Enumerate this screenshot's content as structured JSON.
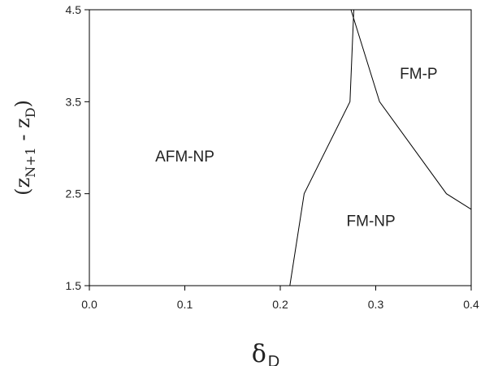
{
  "chart_data": {
    "type": "line",
    "title": "",
    "xlabel": {
      "main": "δ",
      "sub": "D"
    },
    "ylabel": {
      "open": "(z",
      "sub1": "N+1",
      "mid": " - z",
      "sub2": "D",
      "close": ")"
    },
    "xlim": [
      0.0,
      0.4
    ],
    "ylim": [
      1.5,
      4.5
    ],
    "x_ticks": [
      0.0,
      0.1,
      0.2,
      0.3,
      0.4
    ],
    "x_tick_labels": [
      "0.0",
      "0.1",
      "0.2",
      "0.3",
      "0.4"
    ],
    "y_ticks": [
      1.5,
      2.5,
      3.5,
      4.5
    ],
    "y_tick_labels": [
      "1.5",
      "2.5",
      "3.5",
      "4.5"
    ],
    "grid": false,
    "series": [
      {
        "x": [
          0.21,
          0.225,
          0.273,
          0.277
        ],
        "y": [
          1.5,
          2.5,
          3.5,
          4.5
        ]
      },
      {
        "x": [
          0.274,
          0.304,
          0.374,
          0.4
        ],
        "y": [
          4.5,
          3.5,
          2.5,
          2.33
        ]
      }
    ],
    "regions": [
      {
        "label": "AFM-NP",
        "x": 0.1,
        "y": 2.85
      },
      {
        "label": "FM-P",
        "x": 0.345,
        "y": 3.75
      },
      {
        "label": "FM-NP",
        "x": 0.295,
        "y": 2.15
      }
    ]
  }
}
